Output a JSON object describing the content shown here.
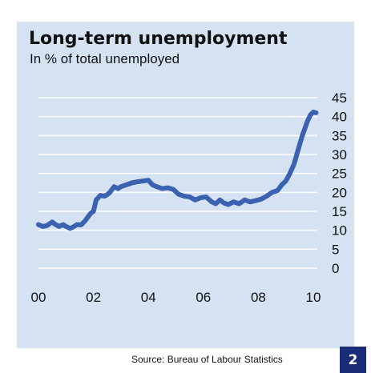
{
  "chart_data": {
    "type": "line",
    "title": "Long-term unemployment",
    "subtitle": "In % of total unemployed",
    "ylim": [
      0,
      45
    ],
    "y_ticks": [
      "0",
      "5",
      "10",
      "15",
      "20",
      "25",
      "30",
      "35",
      "40",
      "45"
    ],
    "y_axis_position": "right",
    "x_ticks": [
      "00",
      "02",
      "04",
      "06",
      "08",
      "10"
    ],
    "x_tick_years": [
      2000,
      2002,
      2004,
      2006,
      2008,
      2010
    ],
    "xlim": [
      2000,
      2010
    ],
    "grid": true,
    "series": [
      {
        "color": "#3a62b0",
        "x": [
          2000.0,
          2000.15,
          2000.3,
          2000.5,
          2000.6,
          2000.75,
          2000.9,
          2001.0,
          2001.15,
          2001.25,
          2001.4,
          2001.55,
          2001.7,
          2001.8,
          2001.9,
          2002.0,
          2002.1,
          2002.25,
          2002.4,
          2002.5,
          2002.6,
          2002.75,
          2002.9,
          2003.0,
          2003.2,
          2003.4,
          2003.6,
          2003.8,
          2004.0,
          2004.15,
          2004.3,
          2004.5,
          2004.7,
          2004.9,
          2005.1,
          2005.3,
          2005.5,
          2005.7,
          2005.9,
          2006.1,
          2006.3,
          2006.45,
          2006.6,
          2006.75,
          2006.9,
          2007.1,
          2007.3,
          2007.5,
          2007.7,
          2007.9,
          2008.1,
          2008.3,
          2008.5,
          2008.7,
          2008.85,
          2009.0,
          2009.15,
          2009.3,
          2009.4,
          2009.5,
          2009.6,
          2009.7,
          2009.8,
          2009.9,
          2010.0,
          2010.1
        ],
        "values": [
          11.5,
          11.0,
          11.2,
          12.2,
          11.6,
          11.0,
          11.5,
          11.0,
          10.5,
          10.8,
          11.5,
          11.4,
          12.5,
          13.5,
          14.5,
          15.0,
          18.0,
          19.2,
          19.0,
          19.4,
          20.0,
          21.5,
          21.0,
          21.5,
          22.0,
          22.5,
          22.8,
          23.0,
          23.2,
          22.0,
          21.5,
          21.0,
          21.2,
          20.8,
          19.5,
          19.0,
          18.8,
          18.0,
          18.6,
          18.8,
          17.5,
          17.0,
          18.0,
          17.2,
          16.8,
          17.5,
          17.0,
          18.0,
          17.5,
          17.8,
          18.2,
          19.0,
          20.0,
          20.5,
          22.0,
          23.0,
          25.0,
          27.5,
          30.0,
          32.5,
          35.0,
          37.0,
          39.0,
          40.5,
          41.2,
          41.0
        ]
      }
    ]
  },
  "footer": {
    "source": "Source: Bureau of Labour Statistics",
    "page_number": "2"
  }
}
